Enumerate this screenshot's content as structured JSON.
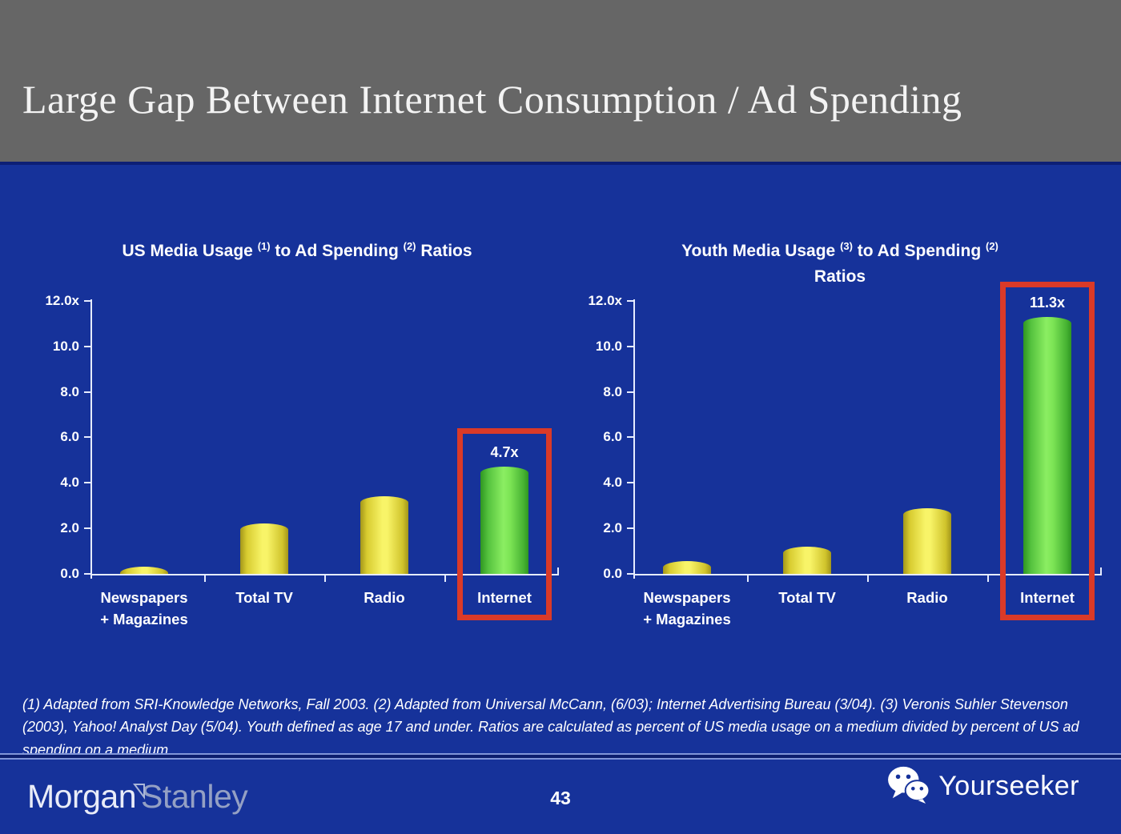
{
  "header": {
    "title": "Large Gap Between Internet Consumption / Ad Spending"
  },
  "chart_data": [
    {
      "type": "bar",
      "title": "US Media Usage (1) to Ad Spending (2) Ratios",
      "title_segments": [
        {
          "text": "US Media Usage "
        },
        {
          "sup": "(1)"
        },
        {
          "text": " to Ad Spending "
        },
        {
          "sup": "(2)"
        },
        {
          "text": " Ratios"
        }
      ],
      "categories": [
        [
          "Newspapers",
          "+ Magazines"
        ],
        [
          "Total TV"
        ],
        [
          "Radio"
        ],
        [
          "Internet"
        ]
      ],
      "values": [
        0.3,
        2.2,
        3.4,
        4.7
      ],
      "bar_styles": [
        "yellow",
        "yellow",
        "yellow",
        "green"
      ],
      "value_labels": [
        null,
        null,
        null,
        "4.7x"
      ],
      "y_ticks": [
        {
          "value": 12,
          "label": "12.0x"
        },
        {
          "value": 10,
          "label": "10.0"
        },
        {
          "value": 8,
          "label": "8.0"
        },
        {
          "value": 6,
          "label": "6.0"
        },
        {
          "value": 4,
          "label": "4.0"
        },
        {
          "value": 2,
          "label": "2.0"
        },
        {
          "value": 0,
          "label": "0.0"
        }
      ],
      "ylim": [
        0,
        12
      ],
      "grid": false,
      "legend": null,
      "highlight": {
        "index": 3,
        "top_value": 6.4
      }
    },
    {
      "type": "bar",
      "title": "Youth Media Usage (3) to Ad Spending (2) Ratios",
      "title_segments": [
        {
          "text": "Youth Media Usage "
        },
        {
          "sup": "(3)"
        },
        {
          "text": " to Ad Spending "
        },
        {
          "sup": "(2)"
        },
        {
          "br": true
        },
        {
          "text": "Ratios"
        }
      ],
      "categories": [
        [
          "Newspapers",
          "+ Magazines"
        ],
        [
          "Total TV"
        ],
        [
          "Radio"
        ],
        [
          "Internet"
        ]
      ],
      "values": [
        0.55,
        1.2,
        2.9,
        11.3
      ],
      "bar_styles": [
        "yellow",
        "yellow",
        "yellow",
        "green"
      ],
      "value_labels": [
        null,
        null,
        null,
        "11.3x"
      ],
      "y_ticks": [
        {
          "value": 12,
          "label": "12.0x"
        },
        {
          "value": 10,
          "label": "10.0"
        },
        {
          "value": 8,
          "label": "8.0"
        },
        {
          "value": 6,
          "label": "6.0"
        },
        {
          "value": 4,
          "label": "4.0"
        },
        {
          "value": 2,
          "label": "2.0"
        },
        {
          "value": 0,
          "label": "0.0"
        }
      ],
      "ylim": [
        0,
        12
      ],
      "grid": false,
      "legend": null,
      "highlight": {
        "index": 3,
        "top_value": 12.85
      }
    }
  ],
  "footnote": {
    "text": "(1) Adapted from SRI-Knowledge Networks, Fall 2003.  (2) Adapted from Universal McCann, (6/03); Internet Advertising Bureau (3/04). (3) Veronis Suhler Stevenson (2003), Yahoo! Analyst Day (5/04).  Youth defined as age 17 and under.  Ratios are calculated as percent of US media usage on a medium divided by percent of US ad spending on a medium."
  },
  "footer": {
    "brand": {
      "part1": "Morgan",
      "part2": "Stanley",
      "icon": "morgan-stanley-triangle-icon"
    },
    "page_number": "43",
    "watermark": {
      "label": "Yourseeker",
      "icon": "wechat-icon"
    }
  },
  "colors": {
    "background": "#16329a",
    "header_bg": "#666666",
    "axis": "#e6ecff",
    "highlight_red": "#da3a28",
    "bar_yellow_center": "#f8f468",
    "bar_yellow_edge": "#a3961a",
    "bar_green_center": "#8bee62",
    "bar_green_edge": "#2f9622"
  }
}
